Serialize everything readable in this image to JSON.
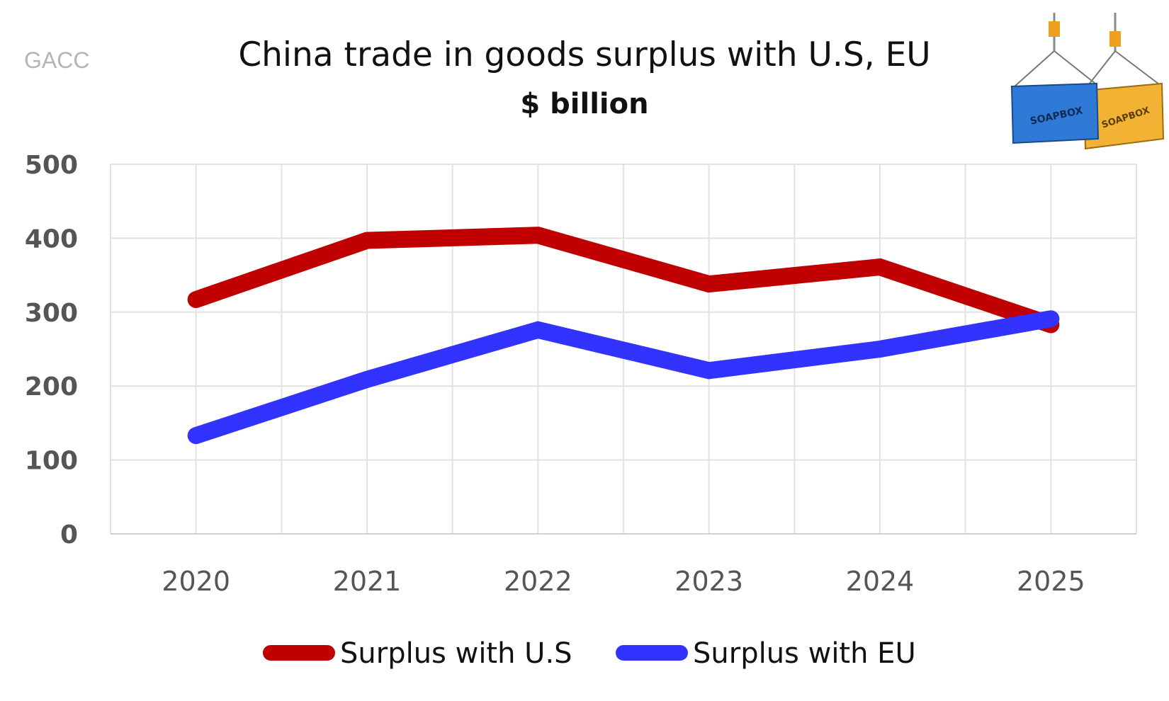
{
  "source_label": "GACC",
  "logo": {
    "container_text_blue": "SOAPBOX",
    "container_text_yellow": "SOAPBOX"
  },
  "chart_data": {
    "type": "line",
    "title": "China trade in goods surplus with U.S, EU",
    "subtitle": "$ billion",
    "categories": [
      "2020",
      "2021",
      "2022",
      "2023",
      "2024",
      "2025"
    ],
    "series": [
      {
        "name": "Surplus with U.S",
        "color": "#c00000",
        "values": [
          317,
          397,
          404,
          338,
          361,
          283
        ]
      },
      {
        "name": "Surplus with EU",
        "color": "#3333ff",
        "values": [
          133,
          209,
          276,
          221,
          250,
          291
        ]
      }
    ],
    "ylim": [
      0,
      500
    ],
    "yticks": [
      0,
      100,
      200,
      300,
      400,
      500
    ],
    "grid": true,
    "legend": "bottom"
  }
}
